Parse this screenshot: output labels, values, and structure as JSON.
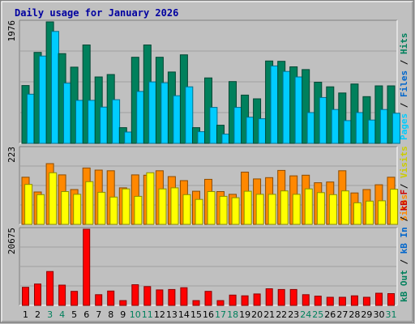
{
  "chart_data": {
    "type": "bar",
    "title": "Daily usage for January 2026",
    "categories": [
      "1",
      "2",
      "3",
      "4",
      "5",
      "6",
      "7",
      "8",
      "9",
      "10",
      "11",
      "12",
      "13",
      "14",
      "15",
      "16",
      "17",
      "18",
      "19",
      "20",
      "21",
      "22",
      "23",
      "24",
      "25",
      "26",
      "27",
      "28",
      "29",
      "30",
      "31"
    ],
    "weekend_days": [
      "3",
      "4",
      "10",
      "11",
      "17",
      "18",
      "24",
      "25",
      "31"
    ],
    "colors": {
      "background": "#c0c0c0",
      "frame": "#a0a0a0",
      "title": "#0000a0",
      "tick_weekday": "#000000",
      "tick_weekend": "#00805c"
    },
    "panels": [
      {
        "ymax_label": "1976",
        "ymax": 1976,
        "right_label": [
          {
            "text": "Hits",
            "color": "#00805c"
          },
          {
            "text": " / ",
            "color": "#000000"
          },
          {
            "text": "Files",
            "color": "#0066cc"
          },
          {
            "text": " / ",
            "color": "#000000"
          },
          {
            "text": "Pages",
            "color": "#00ccff"
          }
        ],
        "series": [
          {
            "name": "Hits",
            "color": "#00805c",
            "values": [
              940,
              1480,
              1976,
              1460,
              1240,
              1600,
              1080,
              1120,
              255,
              1400,
              1600,
              1400,
              1160,
              1440,
              255,
              1065,
              295,
              1005,
              785,
              725,
              1340,
              1335,
              1245,
              1200,
              995,
              920,
              820,
              965,
              760,
              935,
              935
            ]
          },
          {
            "name": "Files",
            "color": "#0066cc",
            "values": [
              940,
              1480,
              1976,
              1460,
              1240,
              1600,
              1080,
              1120,
              255,
              1400,
              1600,
              1400,
              1160,
              1440,
              255,
              1065,
              295,
              1005,
              785,
              725,
              1340,
              1335,
              1245,
              1200,
              995,
              920,
              820,
              965,
              760,
              935,
              935
            ]
          },
          {
            "name": "Pages",
            "color": "#00ccff",
            "values": [
              800,
              1420,
              1820,
              980,
              700,
              700,
              590,
              710,
              185,
              845,
              1000,
              985,
              775,
              920,
              190,
              585,
              150,
              585,
              425,
              400,
              1260,
              1170,
              1080,
              500,
              745,
              550,
              370,
              500,
              380,
              550,
              490
            ]
          }
        ]
      },
      {
        "ymax_label": "223",
        "ymax": 223,
        "right_label": [
          {
            "text": "Visits",
            "color": "#cccc00"
          },
          {
            "text": " / ",
            "color": "#000000"
          },
          {
            "text": "Sites",
            "color": "#ff8800"
          }
        ],
        "series": [
          {
            "name": "Visits",
            "color": "#ff8800",
            "values": [
              138,
              95,
              178,
              145,
              102,
              165,
              159,
              157,
              107,
              145,
              144,
              157,
              140,
              128,
              97,
              132,
              96,
              88,
              153,
              133,
              137,
              158,
              142,
              144,
              122,
              124,
              157,
              92,
              102,
              116,
              138
            ]
          },
          {
            "name": "Sites",
            "color": "#ffff00",
            "values": [
              117,
              87,
              151,
              96,
              88,
              125,
              94,
              80,
              104,
              82,
              151,
              104,
              107,
              87,
              73,
              96,
              82,
              78,
              97,
              88,
              88,
              98,
              88,
              104,
              93,
              87,
              98,
              63,
              68,
              69,
              103
            ]
          }
        ]
      },
      {
        "ymax_label": "20675",
        "ymax": 20675,
        "right_label": [
          {
            "text": "kB F",
            "color": "#cc0000"
          },
          {
            "text": " / ",
            "color": "#000000"
          },
          {
            "text": "kB In",
            "color": "#0066cc"
          },
          {
            "text": " / ",
            "color": "#000000"
          },
          {
            "text": "kB Out",
            "color": "#00805c"
          }
        ],
        "series": [
          {
            "name": "kB F",
            "color": "#ff0000",
            "values": [
              4900,
              5800,
              9200,
              5500,
              3800,
              20675,
              2900,
              3900,
              1300,
              5600,
              5100,
              4200,
              4300,
              4800,
              1300,
              3800,
              1300,
              2800,
              2600,
              3100,
              4500,
              4300,
              4300,
              2900,
              2500,
              2200,
              2200,
              2600,
              2200,
              3300,
              3200
            ]
          }
        ]
      }
    ]
  }
}
